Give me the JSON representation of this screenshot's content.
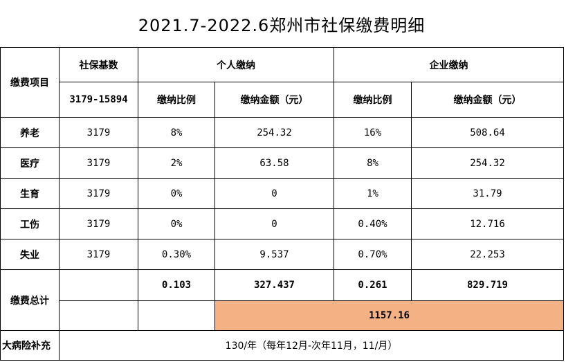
{
  "title": "2021.7-2022.6郑州市社保缴费明细",
  "header": {
    "item_label": "缴费项目",
    "base_label": "社保基数",
    "base_range": "3179-15894",
    "personal_label": "个人缴纳",
    "company_label": "企业缴纳",
    "rate_label": "缴纳比例",
    "amount_label": "缴纳金额（元）"
  },
  "rows": [
    {
      "item": "养老",
      "base": "3179",
      "p_rate": "8%",
      "p_amount": "254.32",
      "c_rate": "16%",
      "c_amount": "508.64"
    },
    {
      "item": "医疗",
      "base": "3179",
      "p_rate": "2%",
      "p_amount": "63.58",
      "c_rate": "8%",
      "c_amount": "254.32"
    },
    {
      "item": "生育",
      "base": "3179",
      "p_rate": "0%",
      "p_amount": "0",
      "c_rate": "1%",
      "c_amount": "31.79"
    },
    {
      "item": "工伤",
      "base": "3179",
      "p_rate": "0%",
      "p_amount": "0",
      "c_rate": "0.40%",
      "c_amount": "12.716"
    },
    {
      "item": "失业",
      "base": "3179",
      "p_rate": "0.30%",
      "p_amount": "9.537",
      "c_rate": "0.70%",
      "c_amount": "22.253"
    }
  ],
  "totals": {
    "label": "缴费总计",
    "p_rate": "0.103",
    "p_amount": "327.437",
    "c_rate": "0.261",
    "c_amount": "829.719",
    "grand_total": "1157.16"
  },
  "illness": {
    "label": "大病险补充",
    "value": "130/年（每年12月-次年11月，11/月）"
  }
}
